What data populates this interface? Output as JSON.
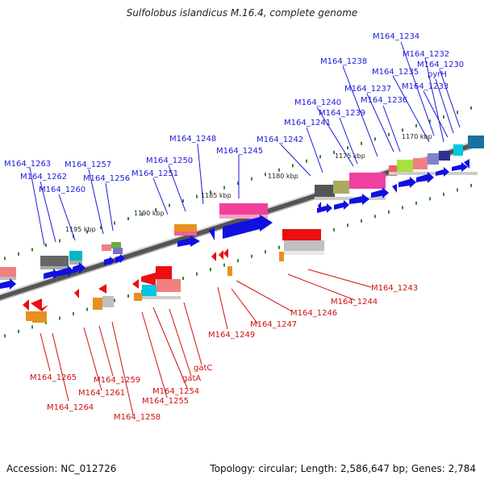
{
  "title": "Sulfolobus islandicus M.16.4, complete genome",
  "footer": {
    "accession": "Accession: NC_012726",
    "summary": "Topology: circular; Length: 2,586,647 bp; Genes: 2,784"
  },
  "colors": {
    "plus_label": "#1a1adc",
    "minus_label": "#d01010",
    "axis_dark": "#555555",
    "axis_light": "#c8c8c8",
    "tick": "#1a8a1a"
  },
  "ticks": [
    "1170 kbp",
    "1175 kbp",
    "1180 kbp",
    "1185 kbp",
    "1190 kbp",
    "1195 kbp"
  ],
  "plus_genes": [
    "M164_1263",
    "M164_1262",
    "M164_1260",
    "M164_1257",
    "M164_1256",
    "M164_1251",
    "M164_1250",
    "M164_1248",
    "M164_1245",
    "M164_1242",
    "M164_1241",
    "M164_1240",
    "M164_1239",
    "M164_1238",
    "M164_1237",
    "M164_1236",
    "M164_1235",
    "M164_1233",
    "pyrH",
    "M164_1230",
    "M164_1232",
    "M164_1234"
  ],
  "minus_genes": [
    "M164_1243",
    "M164_1244",
    "M164_1246",
    "M164_1247",
    "M164_1249",
    "gatC",
    "gatA",
    "M164_1254",
    "M164_1255",
    "M164_1258",
    "M164_1259",
    "M164_1261",
    "M164_1264",
    "M164_1265"
  ]
}
